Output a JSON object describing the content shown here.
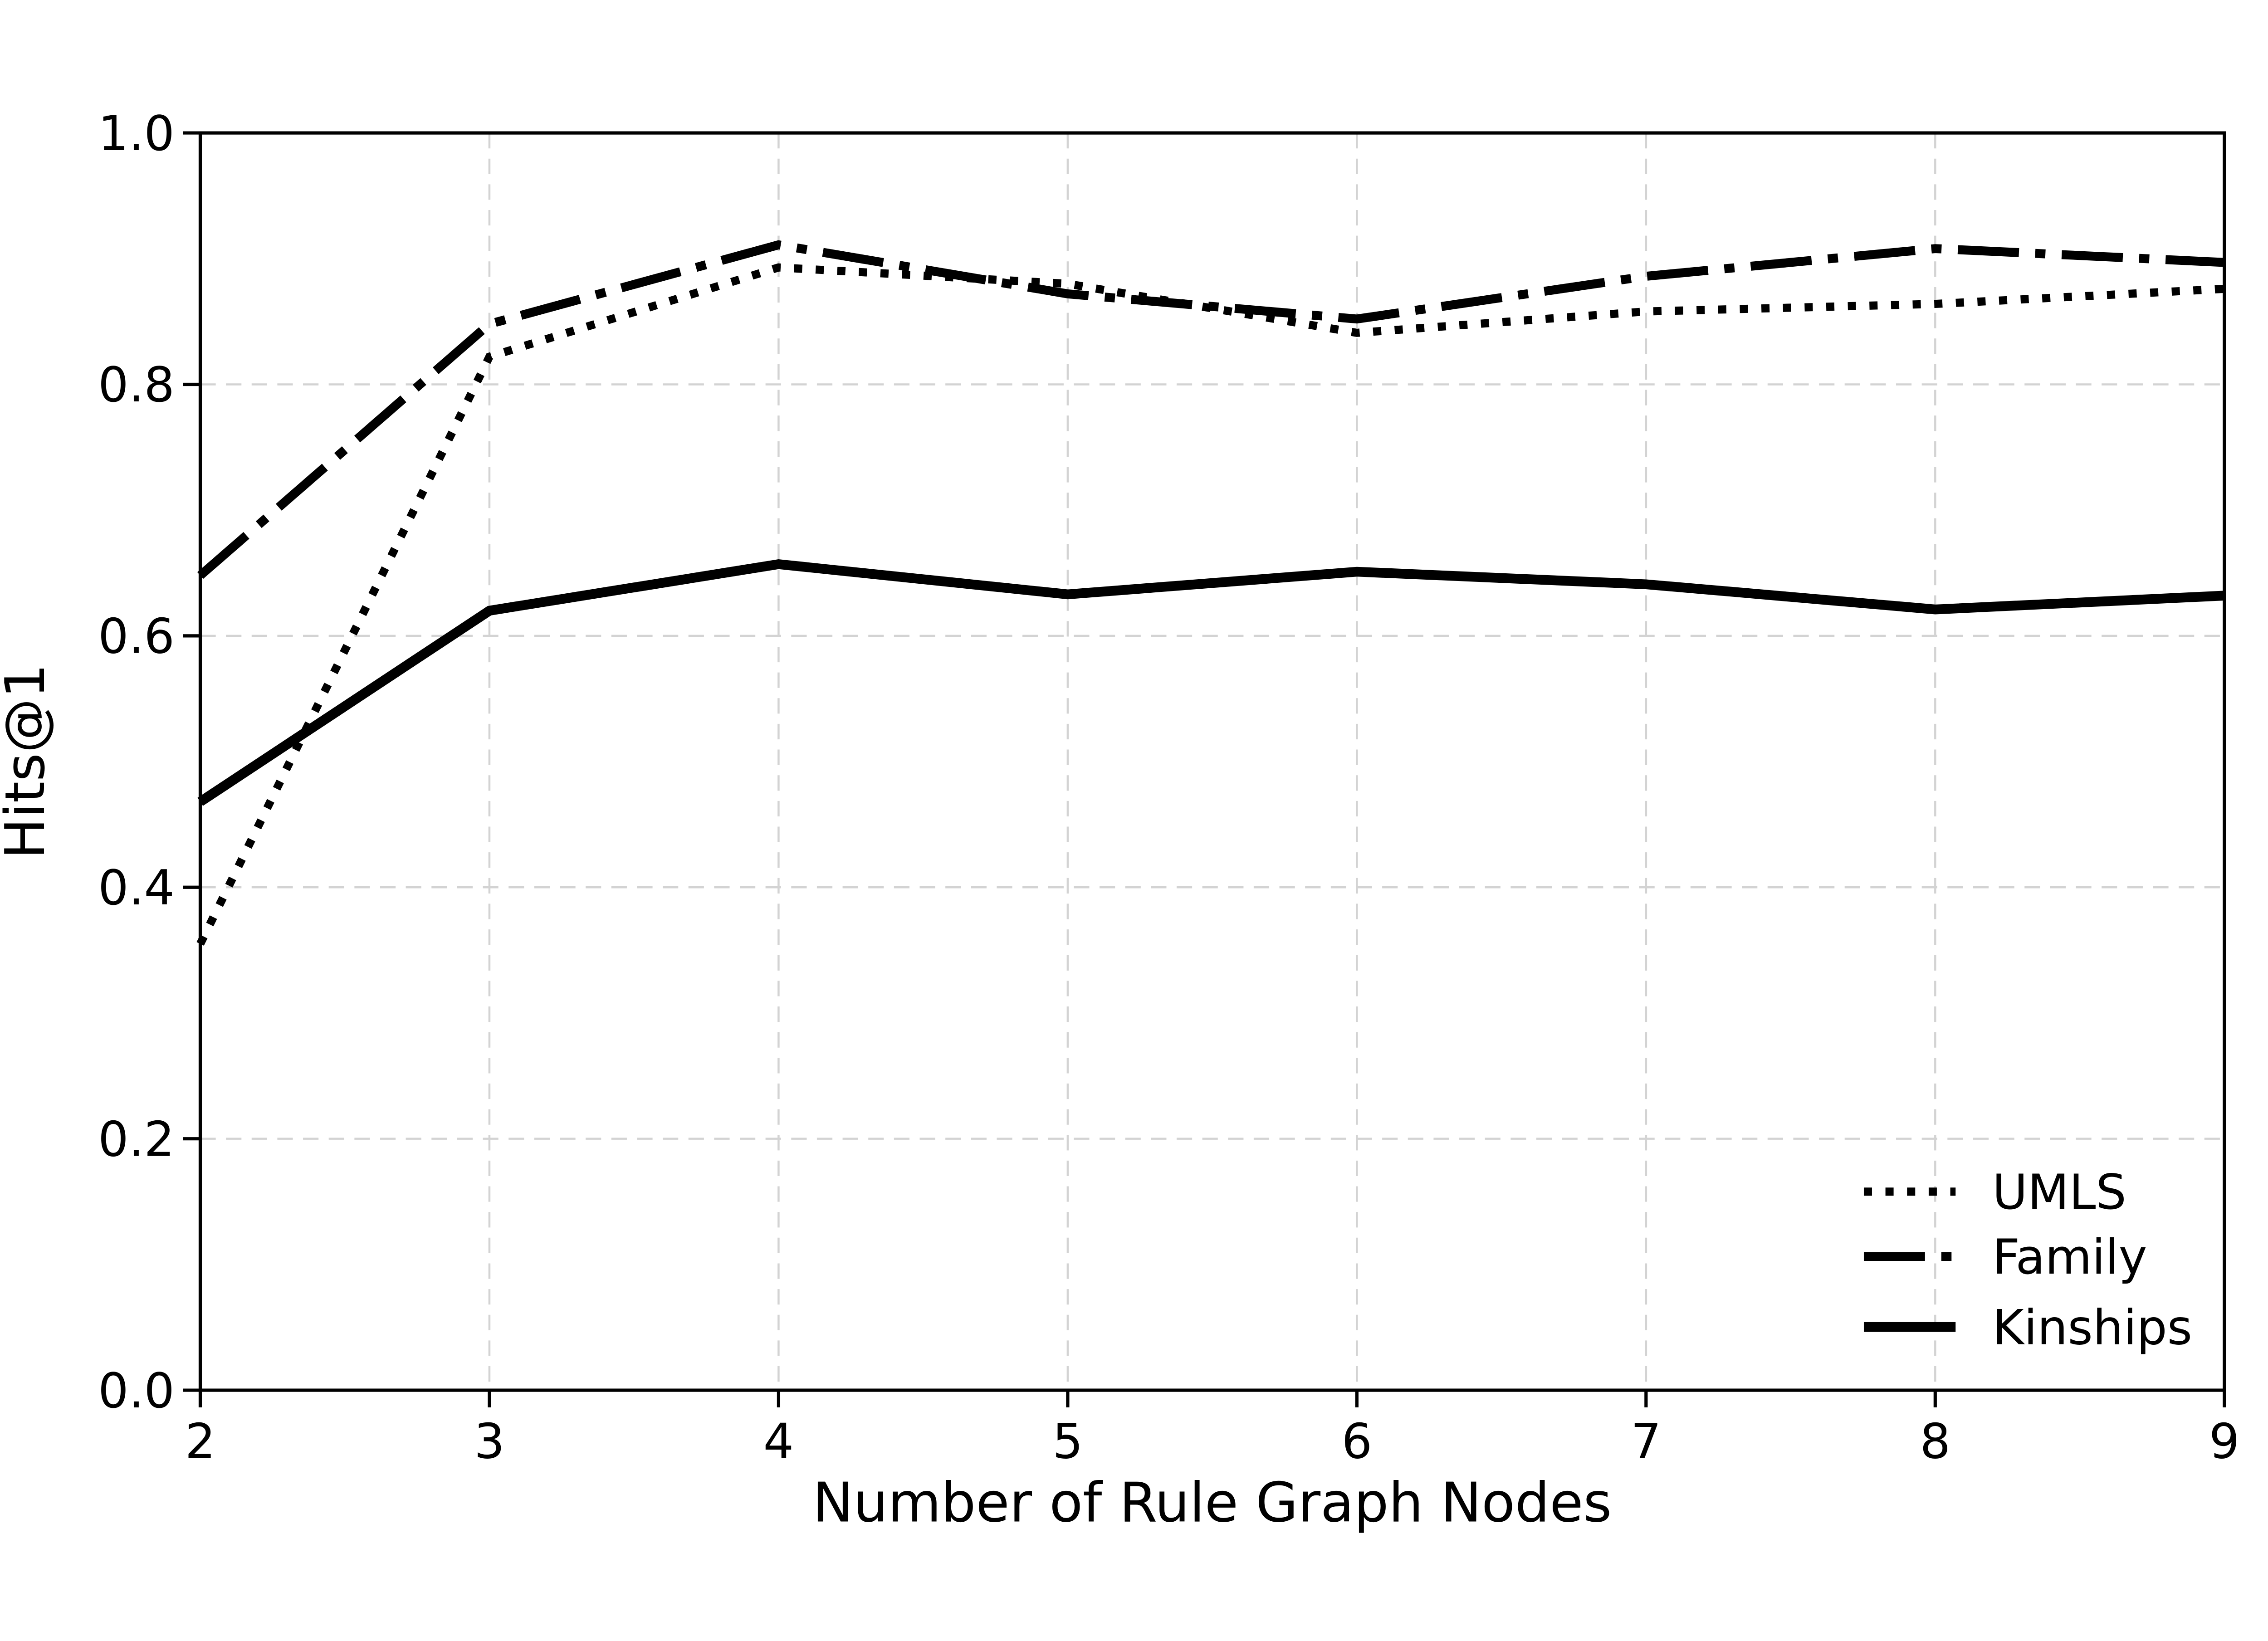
{
  "figure": {
    "background_color": "#ffffff",
    "axis_color": "#000000",
    "grid_color": "#d3d3d3",
    "xlabel": "Number of Rule Graph Nodes",
    "ylabel": "Hits@1"
  },
  "chart_data": {
    "type": "line",
    "title": "",
    "xlabel": "Number of Rule Graph Nodes",
    "ylabel": "Hits@1",
    "x": [
      2,
      3,
      4,
      5,
      6,
      7,
      8,
      9
    ],
    "series": [
      {
        "name": "UMLS",
        "style": "dotted",
        "color": "#000000",
        "values": [
          0.355,
          0.822,
          0.893,
          0.88,
          0.841,
          0.858,
          0.864,
          0.876
        ]
      },
      {
        "name": "Family",
        "style": "dashdot",
        "color": "#000000",
        "values": [
          0.648,
          0.848,
          0.911,
          0.872,
          0.852,
          0.886,
          0.908,
          0.897
        ]
      },
      {
        "name": "Kinships",
        "style": "solid",
        "color": "#000000",
        "values": [
          0.468,
          0.62,
          0.657,
          0.633,
          0.651,
          0.641,
          0.621,
          0.632
        ]
      }
    ],
    "xlim": [
      2,
      9
    ],
    "ylim": [
      0.0,
      1.0
    ],
    "xticks": [
      "2",
      "3",
      "4",
      "5",
      "6",
      "7",
      "8",
      "9"
    ],
    "yticks": [
      "0.0",
      "0.2",
      "0.4",
      "0.6",
      "0.8",
      "1.0"
    ],
    "grid": true,
    "grid_style": "dashed",
    "legend_position": "lower right",
    "legend_frame": false
  }
}
